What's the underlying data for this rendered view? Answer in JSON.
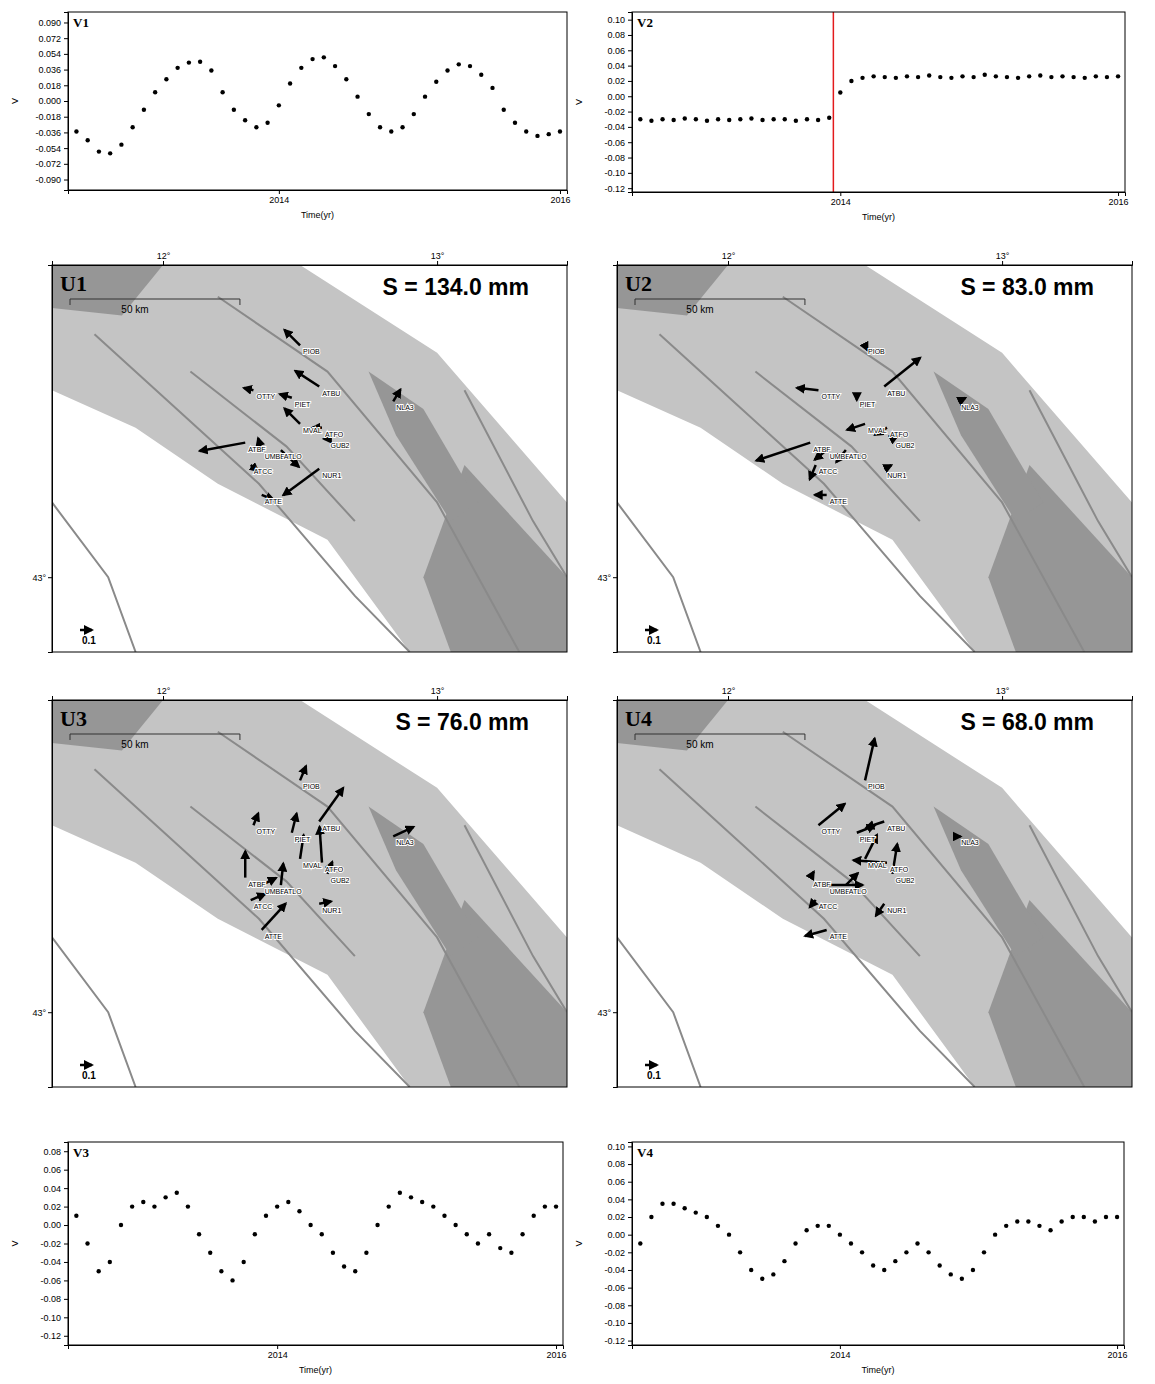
{
  "chart_data": [
    {
      "type": "scatter",
      "title": "V1",
      "x_label": "Time(yr)",
      "y_label": "V",
      "color": "#000000",
      "x": [
        2012.56,
        2012.64,
        2012.72,
        2012.8,
        2012.88,
        2012.96,
        2013.04,
        2013.12,
        2013.2,
        2013.28,
        2013.36,
        2013.44,
        2013.52,
        2013.6,
        2013.68,
        2013.76,
        2013.84,
        2013.92,
        2014.0,
        2014.08,
        2014.16,
        2014.24,
        2014.32,
        2014.4,
        2014.48,
        2014.56,
        2014.64,
        2014.72,
        2014.8,
        2014.88,
        2014.96,
        2015.04,
        2015.12,
        2015.2,
        2015.28,
        2015.36,
        2015.44,
        2015.52,
        2015.6,
        2015.68,
        2015.76,
        2015.84,
        2015.92,
        2016.0
      ],
      "values": [
        -0.035,
        -0.045,
        -0.058,
        -0.06,
        -0.05,
        -0.03,
        -0.01,
        0.01,
        0.025,
        0.038,
        0.044,
        0.045,
        0.035,
        0.01,
        -0.01,
        -0.022,
        -0.03,
        -0.025,
        -0.005,
        0.02,
        0.038,
        0.048,
        0.05,
        0.04,
        0.025,
        0.005,
        -0.015,
        -0.03,
        -0.035,
        -0.03,
        -0.015,
        0.005,
        0.022,
        0.035,
        0.042,
        0.04,
        0.03,
        0.015,
        -0.01,
        -0.025,
        -0.035,
        -0.04,
        -0.038,
        -0.035
      ],
      "xlim": [
        2012.5,
        2016.05
      ],
      "xticks": [
        2014,
        2016
      ],
      "ylim": [
        -0.102,
        0.102
      ],
      "yticks": [
        {
          "value": 0.09,
          "label": "0.090"
        },
        {
          "value": 0.072,
          "label": "0.072"
        },
        {
          "value": 0.054,
          "label": "0.054"
        },
        {
          "value": 0.036,
          "label": "0.036"
        },
        {
          "value": 0.018,
          "label": "0.018"
        },
        {
          "value": 0,
          "label": "0.000"
        },
        {
          "value": -0.018,
          "label": "-0.018"
        },
        {
          "value": -0.036,
          "label": "-0.036"
        },
        {
          "value": -0.054,
          "label": "-0.054"
        },
        {
          "value": -0.072,
          "label": "-0.072"
        },
        {
          "value": -0.09,
          "label": "-0.090"
        }
      ]
    },
    {
      "type": "scatter",
      "title": "V2",
      "x_label": "Time(yr)",
      "y_label": "V",
      "color": "#000000",
      "x": [
        2012.56,
        2012.64,
        2012.72,
        2012.8,
        2012.88,
        2012.96,
        2013.04,
        2013.12,
        2013.2,
        2013.28,
        2013.36,
        2013.44,
        2013.52,
        2013.6,
        2013.68,
        2013.76,
        2013.84,
        2013.92,
        2014.0,
        2014.08,
        2014.16,
        2014.24,
        2014.32,
        2014.4,
        2014.48,
        2014.56,
        2014.64,
        2014.72,
        2014.8,
        2014.88,
        2014.96,
        2015.04,
        2015.12,
        2015.2,
        2015.28,
        2015.36,
        2015.44,
        2015.52,
        2015.6,
        2015.68,
        2015.76,
        2015.84,
        2015.92,
        2016.0
      ],
      "values": [
        -0.03,
        -0.032,
        -0.03,
        -0.031,
        -0.029,
        -0.03,
        -0.032,
        -0.03,
        -0.031,
        -0.03,
        -0.029,
        -0.031,
        -0.03,
        -0.03,
        -0.032,
        -0.03,
        -0.031,
        -0.028,
        0.005,
        0.02,
        0.024,
        0.026,
        0.025,
        0.024,
        0.026,
        0.025,
        0.027,
        0.025,
        0.024,
        0.026,
        0.025,
        0.028,
        0.026,
        0.025,
        0.024,
        0.026,
        0.027,
        0.025,
        0.026,
        0.025,
        0.024,
        0.026,
        0.025,
        0.026
      ],
      "event": {
        "x": 2013.95,
        "color": "#e31a1c"
      },
      "xlim": [
        2012.5,
        2016.05
      ],
      "xticks": [
        2014,
        2016
      ],
      "ylim": [
        -0.125,
        0.11
      ],
      "yticks": [
        {
          "value": 0.1,
          "label": "0.10"
        },
        {
          "value": 0.08,
          "label": "0.08"
        },
        {
          "value": 0.06,
          "label": "0.06"
        },
        {
          "value": 0.04,
          "label": "0.04"
        },
        {
          "value": 0.02,
          "label": "0.02"
        },
        {
          "value": 0,
          "label": "0.00"
        },
        {
          "value": -0.02,
          "label": "-0.02"
        },
        {
          "value": -0.04,
          "label": "-0.04"
        },
        {
          "value": -0.06,
          "label": "-0.06"
        },
        {
          "value": -0.08,
          "label": "-0.08"
        },
        {
          "value": -0.1,
          "label": "-0.10"
        },
        {
          "value": -0.12,
          "label": "-0.12"
        }
      ]
    },
    {
      "type": "vector_map",
      "title": "U1",
      "annotation": "S = 134.0 mm",
      "color": "#000000",
      "labels": [
        "PIOB",
        "ATBU",
        "NLA3",
        "OTTY",
        "PIET",
        "MVAL",
        "ATFO",
        "GUB2",
        "ATBF",
        "UMBE",
        "ATLO",
        "ATCC",
        "NUR1",
        "ATTE"
      ],
      "x": [
        12.5,
        12.57,
        12.84,
        12.33,
        12.47,
        12.5,
        12.58,
        12.6,
        12.3,
        12.36,
        12.43,
        12.32,
        12.57,
        12.36
      ],
      "y": [
        43.62,
        43.51,
        43.47,
        43.5,
        43.48,
        43.41,
        43.4,
        43.37,
        43.36,
        43.34,
        43.34,
        43.3,
        43.29,
        43.22
      ],
      "u": [
        -0.13,
        -0.2,
        0.06,
        -0.08,
        -0.1,
        -0.13,
        -0.08,
        -0.03,
        -0.38,
        -0.03,
        0.15,
        0.06,
        -0.3,
        0.1
      ],
      "v": [
        0.13,
        0.13,
        0.1,
        0.02,
        0.03,
        0.13,
        0,
        0,
        -0.07,
        0.1,
        -0.14,
        -0.05,
        -0.22,
        -0.04
      ],
      "xlim": [
        11.595,
        13.474
      ],
      "ylim": [
        42.8,
        43.835
      ],
      "xticks": [
        {
          "value": 12,
          "label": "12°"
        },
        {
          "value": 13,
          "label": "13°"
        }
      ],
      "yticks": [
        {
          "value": 43,
          "label": "43°"
        }
      ],
      "scale_bar": {
        "label": "50 km",
        "length": 0.62
      },
      "reference": 0.1
    },
    {
      "type": "vector_map",
      "title": "U2",
      "annotation": "S = 83.0 mm",
      "color": "#000000",
      "labels": [
        "PIOB",
        "ATBU",
        "NLA3",
        "OTTY",
        "PIET",
        "MVAL",
        "ATFO",
        "GUB2",
        "ATBF",
        "UMBE",
        "ATLO",
        "ATCC",
        "NUR1",
        "ATTE"
      ],
      "x": [
        12.5,
        12.57,
        12.84,
        12.33,
        12.47,
        12.5,
        12.58,
        12.6,
        12.3,
        12.36,
        12.43,
        12.32,
        12.57,
        12.36
      ],
      "y": [
        43.62,
        43.51,
        43.47,
        43.5,
        43.48,
        43.41,
        43.4,
        43.37,
        43.36,
        43.34,
        43.34,
        43.3,
        43.29,
        43.22
      ],
      "u": [
        0.02,
        0.3,
        0.06,
        -0.18,
        0,
        -0.15,
        -0.1,
        0.04,
        -0.45,
        -0.1,
        -0.08,
        -0.05,
        0.06,
        -0.1
      ],
      "v": [
        -0.04,
        0.24,
        0.03,
        0.02,
        -0.02,
        -0.05,
        -0.06,
        0.02,
        -0.15,
        -0.08,
        -0.1,
        -0.12,
        0.03,
        0
      ],
      "xlim": [
        11.595,
        13.474
      ],
      "ylim": [
        42.8,
        43.835
      ],
      "xticks": [
        {
          "value": 12,
          "label": "12°"
        },
        {
          "value": 13,
          "label": "13°"
        }
      ],
      "yticks": [
        {
          "value": 43,
          "label": "43°"
        }
      ],
      "scale_bar": {
        "label": "50 km",
        "length": 0.62
      },
      "reference": 0.1
    },
    {
      "type": "vector_map",
      "title": "U3",
      "annotation": "S = 76.0 mm",
      "color": "#000000",
      "labels": [
        "PIOB",
        "ATBU",
        "NLA3",
        "OTTY",
        "PIET",
        "MVAL",
        "ATFO",
        "GUB2",
        "ATBF",
        "UMBE",
        "ATLO",
        "ATCC",
        "NUR1",
        "ATTE"
      ],
      "x": [
        12.5,
        12.57,
        12.84,
        12.33,
        12.47,
        12.5,
        12.58,
        12.6,
        12.3,
        12.36,
        12.43,
        12.32,
        12.57,
        12.36
      ],
      "y": [
        43.62,
        43.51,
        43.47,
        43.5,
        43.48,
        43.41,
        43.4,
        43.37,
        43.36,
        43.34,
        43.34,
        43.3,
        43.29,
        43.22
      ],
      "u": [
        0.05,
        0.2,
        0.17,
        0.04,
        0.04,
        0.03,
        -0.02,
        0.04,
        0,
        0.12,
        0.02,
        0.12,
        0.1,
        0.2
      ],
      "v": [
        0.12,
        0.28,
        0.08,
        0.1,
        0.16,
        0.2,
        0.3,
        0.1,
        0.22,
        0.06,
        0.18,
        0.05,
        0.02,
        0.22
      ],
      "xlim": [
        11.595,
        13.474
      ],
      "ylim": [
        42.8,
        43.835
      ],
      "xticks": [
        {
          "value": 12,
          "label": "12°"
        },
        {
          "value": 13,
          "label": "13°"
        }
      ],
      "yticks": [
        {
          "value": 43,
          "label": "43°"
        }
      ],
      "scale_bar": {
        "label": "50 km",
        "length": 0.62
      },
      "reference": 0.1
    },
    {
      "type": "vector_map",
      "title": "U4",
      "annotation": "S = 68.0 mm",
      "color": "#000000",
      "labels": [
        "PIOB",
        "ATBU",
        "NLA3",
        "OTTY",
        "PIET",
        "MVAL",
        "ATFO",
        "GUB2",
        "ATBF",
        "UMBE",
        "ATLO",
        "ATCC",
        "NUR1",
        "ATTE"
      ],
      "x": [
        12.5,
        12.57,
        12.84,
        12.33,
        12.47,
        12.5,
        12.58,
        12.6,
        12.3,
        12.36,
        12.43,
        12.32,
        12.57,
        12.36
      ],
      "y": [
        43.62,
        43.51,
        43.47,
        43.5,
        43.48,
        43.41,
        43.4,
        43.37,
        43.36,
        43.34,
        43.34,
        43.3,
        43.29,
        43.22
      ],
      "u": [
        0.08,
        -0.15,
        0.02,
        0.22,
        0.15,
        0.1,
        -0.28,
        0.04,
        0.03,
        0.3,
        0.1,
        -0.05,
        -0.07,
        -0.18
      ],
      "v": [
        0.35,
        -0.05,
        0,
        0.18,
        0.06,
        0.2,
        0.02,
        0.25,
        0.05,
        0,
        0.1,
        -0.06,
        -0.1,
        -0.05
      ],
      "xlim": [
        11.595,
        13.474
      ],
      "ylim": [
        42.8,
        43.835
      ],
      "xticks": [
        {
          "value": 12,
          "label": "12°"
        },
        {
          "value": 13,
          "label": "13°"
        }
      ],
      "yticks": [
        {
          "value": 43,
          "label": "43°"
        }
      ],
      "scale_bar": {
        "label": "50 km",
        "length": 0.62
      },
      "reference": 0.1
    },
    {
      "type": "scatter",
      "title": "V3",
      "x_label": "Time(yr)",
      "y_label": "V",
      "color": "#000000",
      "x": [
        2012.56,
        2012.64,
        2012.72,
        2012.8,
        2012.88,
        2012.96,
        2013.04,
        2013.12,
        2013.2,
        2013.28,
        2013.36,
        2013.44,
        2013.52,
        2013.6,
        2013.68,
        2013.76,
        2013.84,
        2013.92,
        2014.0,
        2014.08,
        2014.16,
        2014.24,
        2014.32,
        2014.4,
        2014.48,
        2014.56,
        2014.64,
        2014.72,
        2014.8,
        2014.88,
        2014.96,
        2015.04,
        2015.12,
        2015.2,
        2015.28,
        2015.36,
        2015.44,
        2015.52,
        2015.6,
        2015.68,
        2015.76,
        2015.84,
        2015.92,
        2016.0
      ],
      "values": [
        0.01,
        -0.02,
        -0.05,
        -0.04,
        0.0,
        0.02,
        0.025,
        0.02,
        0.03,
        0.035,
        0.02,
        -0.01,
        -0.03,
        -0.05,
        -0.06,
        -0.04,
        -0.01,
        0.01,
        0.02,
        0.025,
        0.015,
        0.0,
        -0.01,
        -0.03,
        -0.045,
        -0.05,
        -0.03,
        0.0,
        0.02,
        0.035,
        0.03,
        0.025,
        0.02,
        0.01,
        0.0,
        -0.01,
        -0.02,
        -0.01,
        -0.025,
        -0.03,
        -0.01,
        0.01,
        0.02,
        0.02
      ],
      "xlim": [
        2012.5,
        2016.05
      ],
      "xticks": [
        2014,
        2016
      ],
      "ylim": [
        -0.13,
        0.09
      ],
      "yticks": [
        {
          "value": 0.08,
          "label": "0.08"
        },
        {
          "value": 0.06,
          "label": "0.06"
        },
        {
          "value": 0.04,
          "label": "0.04"
        },
        {
          "value": 0.02,
          "label": "0.02"
        },
        {
          "value": 0,
          "label": "0.00"
        },
        {
          "value": -0.02,
          "label": "-0.02"
        },
        {
          "value": -0.04,
          "label": "-0.04"
        },
        {
          "value": -0.06,
          "label": "-0.06"
        },
        {
          "value": -0.08,
          "label": "-0.08"
        },
        {
          "value": -0.1,
          "label": "-0.10"
        },
        {
          "value": -0.12,
          "label": "-0.12"
        }
      ]
    },
    {
      "type": "scatter",
      "title": "V4",
      "x_label": "Time(yr)",
      "y_label": "V",
      "color": "#000000",
      "x": [
        2012.56,
        2012.64,
        2012.72,
        2012.8,
        2012.88,
        2012.96,
        2013.04,
        2013.12,
        2013.2,
        2013.28,
        2013.36,
        2013.44,
        2013.52,
        2013.6,
        2013.68,
        2013.76,
        2013.84,
        2013.92,
        2014.0,
        2014.08,
        2014.16,
        2014.24,
        2014.32,
        2014.4,
        2014.48,
        2014.56,
        2014.64,
        2014.72,
        2014.8,
        2014.88,
        2014.96,
        2015.04,
        2015.12,
        2015.2,
        2015.28,
        2015.36,
        2015.44,
        2015.52,
        2015.6,
        2015.68,
        2015.76,
        2015.84,
        2015.92,
        2016.0
      ],
      "values": [
        -0.01,
        0.02,
        0.035,
        0.035,
        0.03,
        0.025,
        0.02,
        0.01,
        0.0,
        -0.02,
        -0.04,
        -0.05,
        -0.045,
        -0.03,
        -0.01,
        0.005,
        0.01,
        0.01,
        0.0,
        -0.01,
        -0.02,
        -0.035,
        -0.04,
        -0.03,
        -0.02,
        -0.01,
        -0.02,
        -0.035,
        -0.045,
        -0.05,
        -0.04,
        -0.02,
        0.0,
        0.01,
        0.015,
        0.015,
        0.01,
        0.005,
        0.015,
        0.02,
        0.02,
        0.015,
        0.02,
        0.02
      ],
      "xlim": [
        2012.5,
        2016.05
      ],
      "xticks": [
        2014,
        2016
      ],
      "ylim": [
        -0.125,
        0.105
      ],
      "yticks": [
        {
          "value": 0.1,
          "label": "0.10"
        },
        {
          "value": 0.08,
          "label": "0.08"
        },
        {
          "value": 0.06,
          "label": "0.06"
        },
        {
          "value": 0.04,
          "label": "0.04"
        },
        {
          "value": 0.02,
          "label": "0.02"
        },
        {
          "value": 0,
          "label": "0.00"
        },
        {
          "value": -0.02,
          "label": "-0.02"
        },
        {
          "value": -0.04,
          "label": "-0.04"
        },
        {
          "value": -0.06,
          "label": "-0.06"
        },
        {
          "value": -0.08,
          "label": "-0.08"
        },
        {
          "value": -0.1,
          "label": "-0.10"
        },
        {
          "value": -0.12,
          "label": "-0.12"
        }
      ]
    }
  ]
}
